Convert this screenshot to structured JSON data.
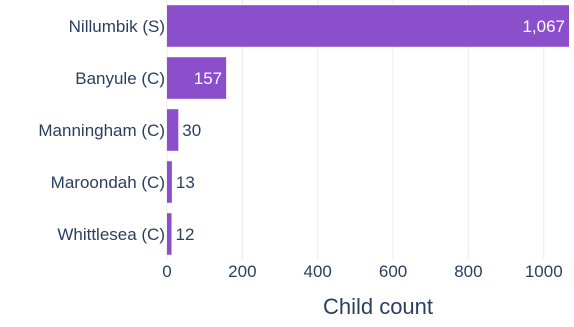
{
  "chart_data": {
    "type": "bar",
    "orientation": "horizontal",
    "categories": [
      "Nillumbik (S)",
      "Banyule (C)",
      "Manningham (C)",
      "Maroondah (C)",
      "Whittlesea (C)"
    ],
    "values": [
      1067,
      157,
      30,
      13,
      12
    ],
    "value_labels": [
      "1,067",
      "157",
      "30",
      "13",
      "12"
    ],
    "xlabel": "Child count",
    "ylabel": "",
    "title": "",
    "xlim": [
      0,
      1067
    ],
    "x_ticks": [
      0,
      200,
      400,
      600,
      800,
      1000
    ],
    "x_tick_labels": [
      "0",
      "200",
      "400",
      "600",
      "800",
      "1000"
    ],
    "grid": "vertical",
    "legend": "none",
    "colors": {
      "bar": "#8b4fcb",
      "text": "#2a3f5f",
      "grid": "#ebebf2",
      "inside_label": "#ffffff"
    }
  }
}
